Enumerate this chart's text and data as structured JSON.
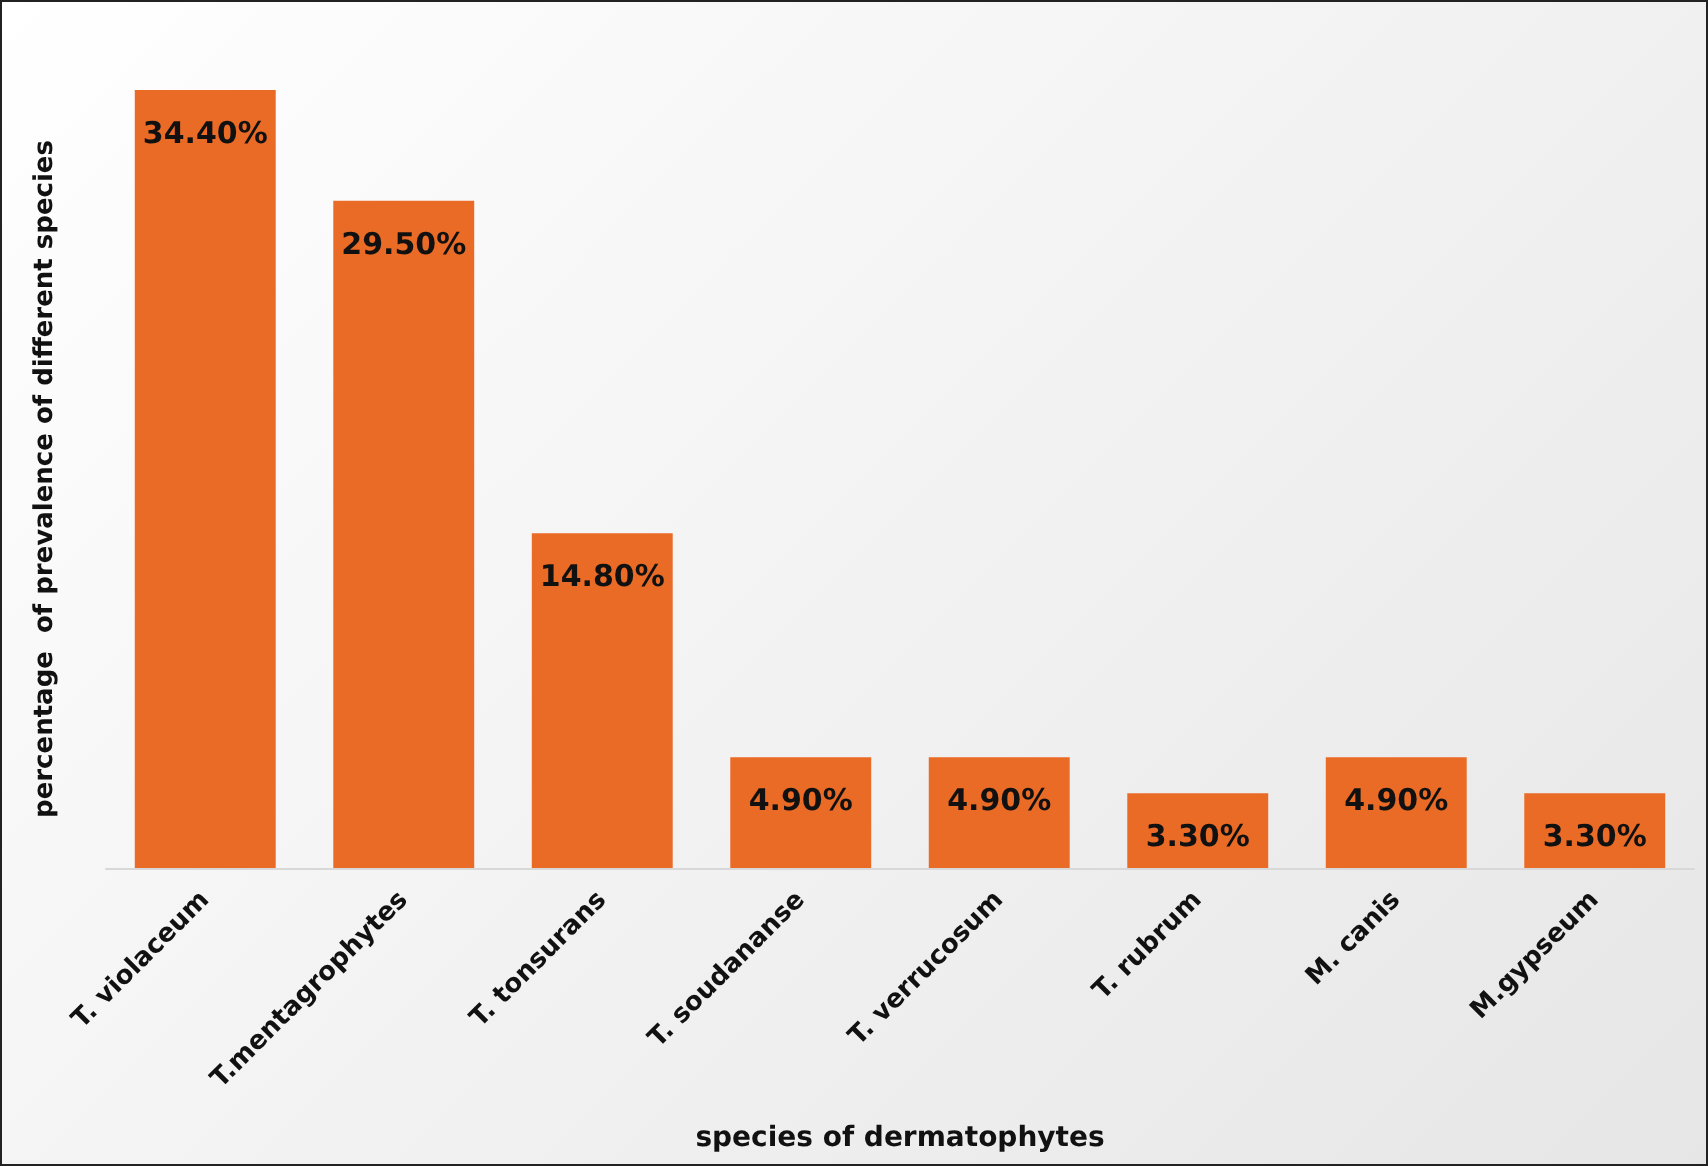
{
  "chart_data": {
    "type": "bar",
    "xlabel": "species of dermatophytes",
    "ylabel": "percentage  of prevalence of different species",
    "categories": [
      "T. violaceum",
      "T.mentagrophytes",
      "T. tonsurans",
      "T. soudananse",
      "T. verrucosum",
      "T. rubrum",
      "M. canis",
      "M.gypseum"
    ],
    "values": [
      34.4,
      29.5,
      14.8,
      4.9,
      4.9,
      3.3,
      4.9,
      3.3
    ],
    "value_labels": [
      "34.40%",
      "29.50%",
      "14.80%",
      "4.90%",
      "4.90%",
      "3.30%",
      "4.90%",
      "3.30%"
    ],
    "color": "#ea6b26"
  }
}
